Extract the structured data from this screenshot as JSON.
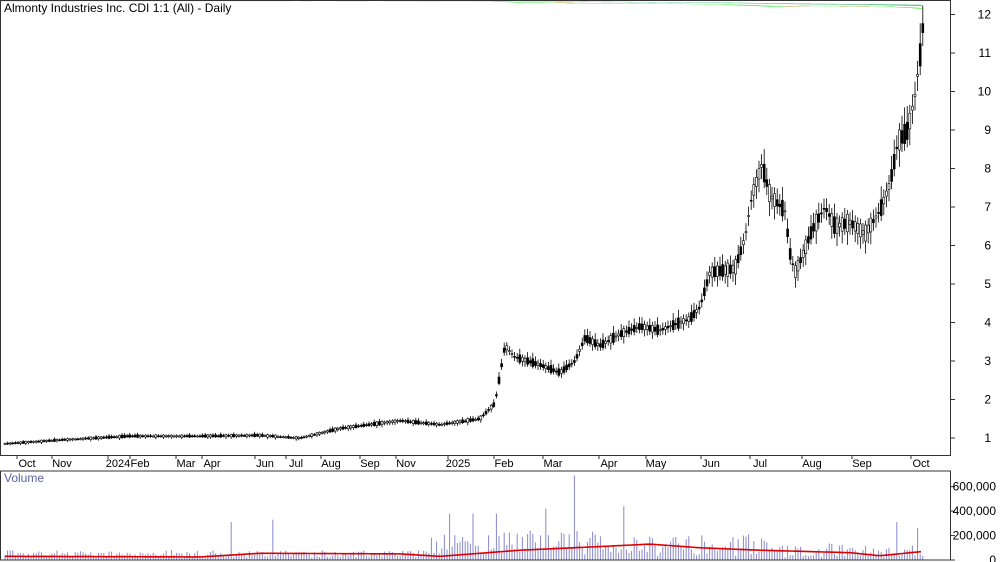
{
  "chart_data": [
    {
      "type": "candlestick",
      "title": "Almonty Industries Inc. CDI 1:1 (All) - Daily",
      "x_tick_labels": [
        "Oct",
        "Nov",
        "2024",
        "Feb",
        "Mar",
        "Apr",
        "Jun",
        "Jul",
        "Aug",
        "Sep",
        "Nov",
        "2025",
        "Feb",
        "Mar",
        "Apr",
        "May",
        "Jun",
        "Jul",
        "Aug",
        "Sep",
        "Oct"
      ],
      "y_ticks": [
        1,
        2,
        3,
        4,
        5,
        6,
        7,
        8,
        9,
        10,
        11,
        12
      ],
      "ylim": [
        0.6,
        12.4
      ],
      "price_path": [
        {
          "x": 5,
          "y": 0.85
        },
        {
          "x": 60,
          "y": 0.95
        },
        {
          "x": 130,
          "y": 1.05
        },
        {
          "x": 200,
          "y": 1.05
        },
        {
          "x": 260,
          "y": 1.07
        },
        {
          "x": 300,
          "y": 1.0
        },
        {
          "x": 340,
          "y": 1.25
        },
        {
          "x": 400,
          "y": 1.45
        },
        {
          "x": 440,
          "y": 1.35
        },
        {
          "x": 480,
          "y": 1.5
        },
        {
          "x": 495,
          "y": 1.9
        },
        {
          "x": 505,
          "y": 3.4
        },
        {
          "x": 515,
          "y": 3.1
        },
        {
          "x": 540,
          "y": 2.9
        },
        {
          "x": 560,
          "y": 2.7
        },
        {
          "x": 575,
          "y": 3.0
        },
        {
          "x": 585,
          "y": 3.6
        },
        {
          "x": 600,
          "y": 3.4
        },
        {
          "x": 620,
          "y": 3.7
        },
        {
          "x": 640,
          "y": 3.9
        },
        {
          "x": 660,
          "y": 3.8
        },
        {
          "x": 690,
          "y": 4.1
        },
        {
          "x": 700,
          "y": 4.4
        },
        {
          "x": 710,
          "y": 5.3
        },
        {
          "x": 735,
          "y": 5.4
        },
        {
          "x": 745,
          "y": 6.2
        },
        {
          "x": 752,
          "y": 7.3
        },
        {
          "x": 762,
          "y": 8.1
        },
        {
          "x": 770,
          "y": 7.3
        },
        {
          "x": 785,
          "y": 6.9
        },
        {
          "x": 790,
          "y": 5.8
        },
        {
          "x": 795,
          "y": 5.3
        },
        {
          "x": 802,
          "y": 5.7
        },
        {
          "x": 812,
          "y": 6.4
        },
        {
          "x": 825,
          "y": 7.0
        },
        {
          "x": 835,
          "y": 6.5
        },
        {
          "x": 850,
          "y": 6.6
        },
        {
          "x": 865,
          "y": 6.3
        },
        {
          "x": 880,
          "y": 6.9
        },
        {
          "x": 890,
          "y": 7.6
        },
        {
          "x": 898,
          "y": 8.7
        },
        {
          "x": 908,
          "y": 9.0
        },
        {
          "x": 915,
          "y": 9.9
        },
        {
          "x": 920,
          "y": 10.9
        },
        {
          "x": 923,
          "y": 11.7
        }
      ]
    },
    {
      "type": "bar",
      "title": "Volume",
      "y_ticks": [
        0,
        200000,
        400000,
        600000
      ],
      "y_tick_labels": [
        "0",
        "200,000",
        "400,000",
        "600,000"
      ],
      "ylim": [
        0,
        720000
      ],
      "average_line_color": "#dd0000",
      "bar_color": "#8888cc"
    }
  ],
  "colors": {
    "short_band_up": "#22ee22",
    "short_band_down": "#ee5511",
    "long_band": "#33b070",
    "early_band": "#f08080",
    "volume_bars": "#8888cc",
    "volume_avg": "#dd0000"
  }
}
